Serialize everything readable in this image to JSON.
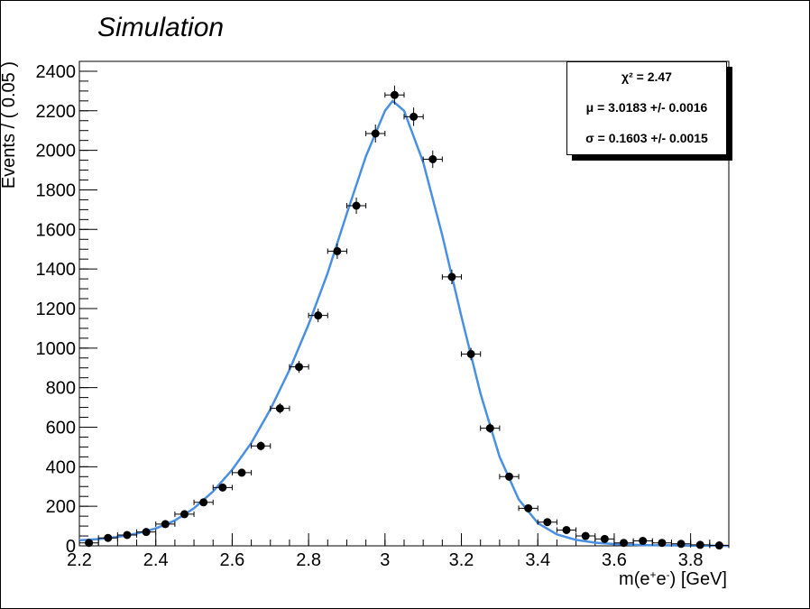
{
  "header": {
    "title": "Simulation"
  },
  "stats": {
    "chi2_label": "χ² = 2.47",
    "mu_label": "μ = 3.0183 +/- 0.0016",
    "sigma_label": "σ = 0.1603 +/- 0.0015"
  },
  "chart_data": {
    "type": "scatter",
    "title": "Simulation",
    "xlabel": "m(e+e-) [GeV]",
    "ylabel": "Events / ( 0.05 )",
    "xlim": [
      2.2,
      3.9
    ],
    "ylim": [
      0,
      2450
    ],
    "xticks": [
      "2.2",
      "2.4",
      "2.6",
      "2.8",
      "3",
      "3.2",
      "3.4",
      "3.6",
      "3.8"
    ],
    "yticks": [
      "0",
      "200",
      "400",
      "600",
      "800",
      "1000",
      "1200",
      "1400",
      "1600",
      "1800",
      "2000",
      "2200",
      "2400"
    ],
    "grid": false,
    "colors": {
      "fit": "#4a90e2",
      "points": "#000000"
    },
    "series": [
      {
        "type": "points-with-errors",
        "x_error": 0.025,
        "x": [
          2.225,
          2.275,
          2.325,
          2.375,
          2.425,
          2.475,
          2.525,
          2.575,
          2.625,
          2.675,
          2.725,
          2.775,
          2.825,
          2.875,
          2.925,
          2.975,
          3.025,
          3.075,
          3.125,
          3.175,
          3.225,
          3.275,
          3.325,
          3.375,
          3.425,
          3.475,
          3.525,
          3.575,
          3.625,
          3.675,
          3.725,
          3.775,
          3.825,
          3.875
        ],
        "y": [
          15,
          40,
          55,
          70,
          110,
          160,
          220,
          295,
          370,
          505,
          695,
          905,
          1165,
          1490,
          1720,
          2085,
          2280,
          2170,
          1955,
          1360,
          970,
          595,
          350,
          190,
          120,
          80,
          50,
          35,
          15,
          25,
          15,
          10,
          5,
          2
        ]
      },
      {
        "type": "fit-curve",
        "x": [
          2.2,
          2.25,
          2.3,
          2.35,
          2.4,
          2.45,
          2.5,
          2.55,
          2.6,
          2.65,
          2.7,
          2.75,
          2.8,
          2.85,
          2.9,
          2.95,
          3.0,
          3.02,
          3.05,
          3.1,
          3.15,
          3.2,
          3.25,
          3.3,
          3.35,
          3.4,
          3.45,
          3.5,
          3.55,
          3.6,
          3.65,
          3.7,
          3.75,
          3.8,
          3.85,
          3.9
        ],
        "y": [
          28,
          34,
          45,
          62,
          88,
          128,
          190,
          275,
          385,
          520,
          690,
          890,
          1120,
          1380,
          1680,
          1970,
          2200,
          2250,
          2200,
          1940,
          1570,
          1160,
          770,
          450,
          235,
          115,
          58,
          30,
          16,
          9,
          5,
          3,
          2,
          1,
          1,
          0
        ]
      }
    ]
  }
}
